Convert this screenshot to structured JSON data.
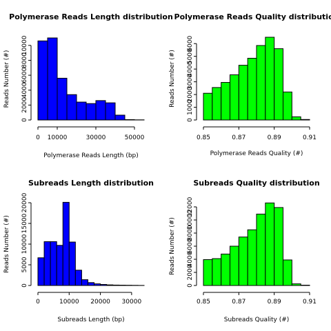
{
  "chart_data": [
    {
      "type": "bar",
      "title": "Polymerase Reads Length distribution",
      "xlabel": "Polymerase Reads Length (bp)",
      "ylabel": "Reads Number (#)",
      "bar_color": "#0000ff",
      "grid": false,
      "bin_edges": [
        0,
        5000,
        10000,
        15000,
        20000,
        25000,
        30000,
        35000,
        40000,
        45000,
        50000,
        55000
      ],
      "values": [
        10600,
        11000,
        5600,
        3400,
        2400,
        2200,
        2600,
        2300,
        650,
        50,
        20
      ],
      "xlim": [
        0,
        55000
      ],
      "ylim": [
        0,
        11000
      ],
      "x_ticks": [
        0,
        10000,
        30000,
        50000
      ],
      "x_tick_labels": [
        "0",
        "10000",
        "30000",
        "50000"
      ],
      "y_ticks": [
        0,
        2000,
        4000,
        6000,
        8000,
        10000
      ],
      "y_tick_labels": [
        "0",
        "2000",
        "4000",
        "6000",
        "8000",
        "10000"
      ]
    },
    {
      "type": "bar",
      "title": "Polymerase Reads Quality distribution",
      "xlabel": "Polymerase Reads Quality (#)",
      "ylabel": "Reads Number (#)",
      "bar_color": "#00ff00",
      "grid": false,
      "bin_edges": [
        0.85,
        0.855,
        0.86,
        0.865,
        0.87,
        0.875,
        0.88,
        0.885,
        0.89,
        0.895,
        0.9,
        0.905,
        0.91
      ],
      "values": [
        2100,
        2550,
        2950,
        3550,
        4300,
        4850,
        5850,
        6500,
        5600,
        2200,
        250,
        40
      ],
      "xlim": [
        0.85,
        0.91
      ],
      "ylim": [
        0,
        6500
      ],
      "x_ticks": [
        0.85,
        0.87,
        0.89,
        0.91
      ],
      "x_tick_labels": [
        "0.85",
        "0.87",
        "0.89",
        "0.91"
      ],
      "y_ticks": [
        0,
        1000,
        2000,
        3000,
        4000,
        5000,
        6000
      ],
      "y_tick_labels": [
        "0",
        "1000",
        "2000",
        "3000",
        "4000",
        "5000",
        "6000"
      ]
    },
    {
      "type": "bar",
      "title": "Subreads Length distribution",
      "xlabel": "Subreads Length (bp)",
      "ylabel": "Reads Number (#)",
      "bar_color": "#0000ff",
      "grid": false,
      "bin_edges": [
        0,
        2000,
        4000,
        6000,
        8000,
        10000,
        12000,
        14000,
        16000,
        18000,
        20000,
        22000,
        24000,
        26000,
        28000,
        30000,
        32000,
        34000
      ],
      "values": [
        6700,
        10600,
        10600,
        9700,
        20100,
        10500,
        3700,
        1400,
        700,
        400,
        250,
        150,
        100,
        80,
        60,
        40,
        20
      ],
      "xlim": [
        0,
        34000
      ],
      "ylim": [
        0,
        20000
      ],
      "x_ticks": [
        0,
        10000,
        20000,
        30000
      ],
      "x_tick_labels": [
        "0",
        "10000",
        "20000",
        "30000"
      ],
      "y_ticks": [
        0,
        5000,
        10000,
        15000,
        20000
      ],
      "y_tick_labels": [
        "0",
        "5000",
        "10000",
        "15000",
        "20000"
      ]
    },
    {
      "type": "bar",
      "title": "Subreads Quality distribution",
      "xlabel": "Subreads Quality (#)",
      "ylabel": "Reads Number (#)",
      "bar_color": "#00ff00",
      "grid": false,
      "bin_edges": [
        0.85,
        0.855,
        0.86,
        0.865,
        0.87,
        0.875,
        0.88,
        0.885,
        0.89,
        0.895,
        0.9,
        0.905,
        0.91
      ],
      "values": [
        3950,
        4100,
        4800,
        6000,
        7400,
        8500,
        10900,
        12600,
        11900,
        3900,
        250,
        50
      ],
      "xlim": [
        0.85,
        0.91
      ],
      "ylim": [
        0,
        12000
      ],
      "x_ticks": [
        0.85,
        0.87,
        0.89,
        0.91
      ],
      "x_tick_labels": [
        "0.85",
        "0.87",
        "0.89",
        "0.91"
      ],
      "y_ticks": [
        0,
        2000,
        4000,
        6000,
        8000,
        10000,
        12000
      ],
      "y_tick_labels": [
        "0",
        "2000",
        "4000",
        "6000",
        "8000",
        "10000",
        "12000"
      ]
    }
  ]
}
